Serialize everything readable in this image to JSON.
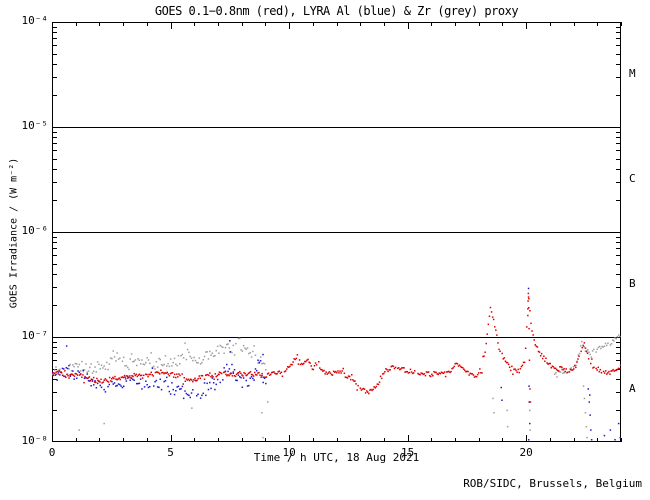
{
  "chart_data": {
    "type": "scatter",
    "title": "GOES 0.1−0.8nm (red), LYRA Al (blue) & Zr (grey) proxy",
    "xlabel": "Time / h UTC, 18 Aug 2021",
    "ylabel": "GOES Irradiance / (W m⁻²)",
    "credit": "ROB/SIDC, Brussels, Belgium",
    "x_axis": {
      "min": 0,
      "max": 24,
      "major_ticks": [
        0,
        5,
        10,
        15,
        20
      ],
      "minor_tick_step": 1
    },
    "y_axis": {
      "scale": "log",
      "min": 1e-08,
      "max": 0.0001,
      "tick_exponents": [
        -4,
        -5,
        -6,
        -7,
        -8
      ],
      "tick_labels": [
        "10⁻⁴",
        "10⁻⁵",
        "10⁻⁶",
        "10⁻⁷",
        "10⁻⁸"
      ]
    },
    "hlines": [
      1e-05,
      1e-06,
      1e-07
    ],
    "flare_classes": [
      {
        "label": "M",
        "log_center": -4.5
      },
      {
        "label": "C",
        "log_center": -5.5
      },
      {
        "label": "B",
        "log_center": -6.5
      },
      {
        "label": "A",
        "log_center": -7.5
      }
    ],
    "series": [
      {
        "name": "LYRA Zr proxy",
        "color": "#9e9e9e",
        "segments": [
          {
            "step": 0.055,
            "jitter": 0.05,
            "anchors": [
              [
                0,
                4.9e-08
              ],
              [
                0.4,
                4.7e-08
              ],
              [
                0.8,
                5e-08
              ],
              [
                1.2,
                5.3e-08
              ],
              [
                1.6,
                5e-08
              ],
              [
                2,
                5.2e-08
              ],
              [
                2.4,
                5.4e-08
              ],
              [
                2.8,
                6.8e-08
              ],
              [
                3.1,
                5.4e-08
              ],
              [
                3.5,
                5.6e-08
              ],
              [
                3.9,
                5.8e-08
              ],
              [
                4.3,
                5.5e-08
              ],
              [
                4.7,
                6e-08
              ],
              [
                5.1,
                5.7e-08
              ],
              [
                5.5,
                6.2e-08
              ],
              [
                5.75,
                7e-08
              ],
              [
                6,
                5.8e-08
              ],
              [
                6.3,
                6.2e-08
              ],
              [
                6.6,
                6.6e-08
              ],
              [
                6.9,
                7.2e-08
              ],
              [
                7.2,
                7.6e-08
              ],
              [
                7.5,
                8e-08
              ],
              [
                7.7,
                7.4e-08
              ],
              [
                7.85,
                1.02e-07
              ],
              [
                8.0,
                7.8e-08
              ],
              [
                8.3,
                7e-08
              ],
              [
                8.6,
                6.2e-08
              ],
              [
                8.9,
                5.6e-08
              ],
              [
                9.05,
                5.2e-08
              ]
            ]
          },
          {
            "step": 0.05,
            "jitter": 0.02,
            "anchors": [
              [
                21.2,
                4.6e-08
              ],
              [
                21.5,
                4.7e-08
              ],
              [
                21.8,
                4.8e-08
              ],
              [
                22.1,
                5.4e-08
              ],
              [
                22.35,
                8.8e-08
              ],
              [
                22.5,
                7.6e-08
              ],
              [
                22.7,
                7e-08
              ],
              [
                22.9,
                7.4e-08
              ],
              [
                23.2,
                8e-08
              ],
              [
                23.5,
                8.6e-08
              ],
              [
                23.8,
                9.6e-08
              ],
              [
                24,
                1.06e-07
              ]
            ]
          }
        ],
        "outliers": [
          [
            1.15,
            1.3e-08
          ],
          [
            2.2,
            1.5e-08
          ],
          [
            5.9,
            2.1e-08
          ],
          [
            8.85,
            1.9e-08
          ],
          [
            8.9,
            1.1e-08
          ],
          [
            9.1,
            2.4e-08
          ],
          [
            18.6,
            2.6e-08
          ],
          [
            18.64,
            1.9e-08
          ],
          [
            19.2,
            2e-08
          ],
          [
            19.22,
            1.4e-08
          ],
          [
            20.15,
            2e-08
          ],
          [
            20.17,
            1.3e-08
          ],
          [
            22.42,
            3.4e-08
          ],
          [
            22.46,
            2.6e-08
          ],
          [
            22.5,
            1.9e-08
          ],
          [
            22.54,
            1.4e-08
          ],
          [
            22.57,
            1.1e-08
          ]
        ]
      },
      {
        "name": "LYRA Al proxy",
        "color": "#1a1acc",
        "segments": [
          {
            "step": 0.055,
            "jitter": 0.055,
            "anchors": [
              [
                0,
                4.3e-08
              ],
              [
                0.3,
                4.4e-08
              ],
              [
                0.6,
                4.6e-08
              ],
              [
                0.9,
                4.2e-08
              ],
              [
                1.2,
                4.6e-08
              ],
              [
                1.5,
                4e-08
              ],
              [
                1.8,
                3.6e-08
              ],
              [
                2.1,
                3.4e-08
              ],
              [
                2.4,
                3.7e-08
              ],
              [
                2.7,
                3.5e-08
              ],
              [
                3,
                3.6e-08
              ],
              [
                3.3,
                3.8e-08
              ],
              [
                3.6,
                3.7e-08
              ],
              [
                3.9,
                3.5e-08
              ],
              [
                4.2,
                3.8e-08
              ],
              [
                4.5,
                3.6e-08
              ],
              [
                4.8,
                3.4e-08
              ],
              [
                5.1,
                3.2e-08
              ],
              [
                5.4,
                3e-08
              ],
              [
                5.7,
                2.8e-08
              ],
              [
                6,
                3e-08
              ],
              [
                6.2,
                2.6e-08
              ],
              [
                6.4,
                2.9e-08
              ],
              [
                6.6,
                3.4e-08
              ],
              [
                6.9,
                3.8e-08
              ],
              [
                7.2,
                4.4e-08
              ],
              [
                7.5,
                5.2e-08
              ],
              [
                7.7,
                4.4e-08
              ],
              [
                7.9,
                3.9e-08
              ],
              [
                8.1,
                3.6e-08
              ],
              [
                8.4,
                3.9e-08
              ],
              [
                8.6,
                4.6e-08
              ],
              [
                8.75,
                6.4e-08
              ],
              [
                8.9,
                4.2e-08
              ],
              [
                9.05,
                3.8e-08
              ]
            ]
          }
        ],
        "outliers": [
          [
            0.62,
            8.2e-08
          ],
          [
            7.5,
            9.2e-08
          ],
          [
            7.52,
            7.2e-08
          ],
          [
            8.9,
            6.8e-08
          ],
          [
            18.95,
            3.3e-08
          ],
          [
            18.98,
            2.5e-08
          ],
          [
            20.1,
            2.9e-07
          ],
          [
            20.12,
            3.4e-08
          ],
          [
            20.13,
            2.4e-08
          ],
          [
            20.15,
            1.5e-08
          ],
          [
            20.11,
            1.05e-08
          ],
          [
            22.62,
            3.2e-08
          ],
          [
            22.66,
            2.4e-08
          ],
          [
            22.68,
            2.8e-08
          ],
          [
            22.7,
            1.8e-08
          ],
          [
            22.73,
            1.3e-08
          ],
          [
            22.76,
            1.05e-08
          ],
          [
            23.3,
            1.15e-08
          ],
          [
            23.55,
            1.3e-08
          ],
          [
            23.75,
            1.05e-08
          ],
          [
            23.9,
            1.5e-08
          ],
          [
            23.97,
            1.1e-08
          ]
        ]
      },
      {
        "name": "GOES 0.1-0.8nm",
        "color": "#dd0000",
        "segments": [
          {
            "step": 0.045,
            "jitter": 0.022,
            "anchors": [
              [
                0,
                4.3e-08
              ],
              [
                0.3,
                4.6e-08
              ],
              [
                0.6,
                4.2e-08
              ],
              [
                1,
                4.4e-08
              ],
              [
                1.4,
                4.1e-08
              ],
              [
                1.8,
                3.9e-08
              ],
              [
                2.2,
                3.8e-08
              ],
              [
                2.6,
                4e-08
              ],
              [
                3,
                4.1e-08
              ],
              [
                3.4,
                4.3e-08
              ],
              [
                3.8,
                4.2e-08
              ],
              [
                4.2,
                4.4e-08
              ],
              [
                4.6,
                4.6e-08
              ],
              [
                5,
                4.4e-08
              ],
              [
                5.4,
                4.2e-08
              ],
              [
                5.8,
                3.8e-08
              ],
              [
                6.2,
                4.1e-08
              ],
              [
                6.6,
                4.3e-08
              ],
              [
                7,
                4.4e-08
              ],
              [
                7.4,
                4.5e-08
              ],
              [
                7.8,
                4.4e-08
              ],
              [
                8.2,
                4.5e-08
              ],
              [
                8.6,
                4.4e-08
              ],
              [
                9,
                4.3e-08
              ],
              [
                9.4,
                4.5e-08
              ],
              [
                9.8,
                4.8e-08
              ],
              [
                10.1,
                5.6e-08
              ],
              [
                10.35,
                6.6e-08
              ],
              [
                10.55,
                5.2e-08
              ],
              [
                10.75,
                6.2e-08
              ],
              [
                11,
                5e-08
              ],
              [
                11.2,
                5.8e-08
              ],
              [
                11.45,
                4.6e-08
              ],
              [
                11.8,
                4.5e-08
              ],
              [
                12.1,
                4.7e-08
              ],
              [
                12.5,
                4.2e-08
              ],
              [
                12.8,
                3.6e-08
              ],
              [
                13.1,
                3.1e-08
              ],
              [
                13.4,
                3e-08
              ],
              [
                13.7,
                3.4e-08
              ],
              [
                14,
                4.7e-08
              ],
              [
                14.4,
                5.1e-08
              ],
              [
                14.8,
                4.9e-08
              ],
              [
                15.2,
                4.7e-08
              ],
              [
                15.6,
                4.5e-08
              ],
              [
                16,
                4.4e-08
              ],
              [
                16.4,
                4.6e-08
              ],
              [
                16.8,
                4.8e-08
              ],
              [
                17.1,
                5.6e-08
              ],
              [
                17.35,
                5e-08
              ],
              [
                17.6,
                4.4e-08
              ],
              [
                17.9,
                4.2e-08
              ],
              [
                18.1,
                4.6e-08
              ],
              [
                18.3,
                8e-08
              ],
              [
                18.5,
                1.95e-07
              ],
              [
                18.65,
                1.4e-07
              ],
              [
                18.85,
                8e-08
              ],
              [
                19.1,
                6e-08
              ],
              [
                19.4,
                5e-08
              ],
              [
                19.7,
                4.7e-08
              ],
              [
                19.95,
                6e-08
              ],
              [
                20.1,
                2.6e-07
              ],
              [
                20.2,
                1.3e-07
              ],
              [
                20.4,
                8.5e-08
              ],
              [
                20.7,
                6.5e-08
              ],
              [
                21,
                5.4e-08
              ],
              [
                21.3,
                4.8e-08
              ],
              [
                21.5,
                5.3e-08
              ],
              [
                21.7,
                4.7e-08
              ],
              [
                22,
                4.9e-08
              ],
              [
                22.2,
                6e-08
              ],
              [
                22.45,
                9.2e-08
              ],
              [
                22.6,
                6.5e-08
              ],
              [
                22.8,
                5.3e-08
              ],
              [
                23.1,
                4.8e-08
              ],
              [
                23.5,
                4.6e-08
              ],
              [
                23.8,
                4.7e-08
              ],
              [
                24,
                5e-08
              ]
            ]
          }
        ],
        "outliers": [
          [
            20.07,
            1.6e-07
          ],
          [
            20.08,
            2.2e-07
          ],
          [
            20.09,
            2.6e-07
          ],
          [
            20.1,
            2.4e-07
          ],
          [
            20.11,
            1.9e-07
          ],
          [
            20.12,
            1.2e-07
          ],
          [
            20.14,
            6e-08
          ],
          [
            20.16,
            3.2e-08
          ],
          [
            20.18,
            2.4e-08
          ]
        ]
      }
    ]
  }
}
